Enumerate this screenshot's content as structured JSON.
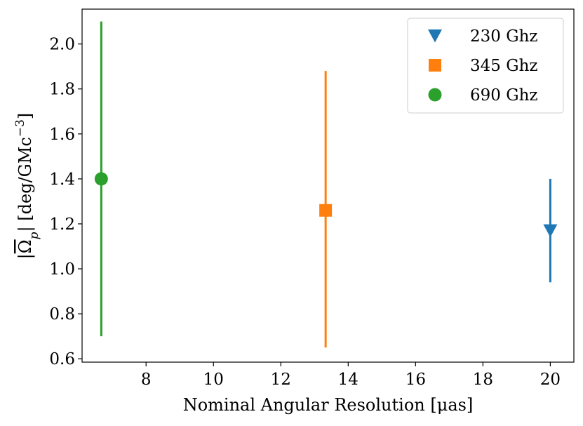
{
  "chart_data": {
    "type": "scatter",
    "xlabel": "Nominal Angular Resolution [μas]",
    "ylabel": "|Ωp| [deg/GMc⁻³]",
    "ylabel_parts": {
      "open": "|",
      "symbol": "Ω",
      "sub": "p",
      "close": "|",
      "unit": " [deg/GMc",
      "sup": "−3",
      "unit_close": "]"
    },
    "xlim": [
      6.1,
      20.7
    ],
    "ylim": [
      0.585,
      2.155
    ],
    "xticks": [
      8,
      10,
      12,
      14,
      16,
      18,
      20
    ],
    "xtick_labels": [
      "8",
      "10",
      "12",
      "14",
      "16",
      "18",
      "20"
    ],
    "yticks": [
      0.6,
      0.8,
      1.0,
      1.2,
      1.4,
      1.6,
      1.8,
      2.0
    ],
    "ytick_labels": [
      "0.6",
      "0.8",
      "1.0",
      "1.2",
      "1.4",
      "1.6",
      "1.8",
      "2.0"
    ],
    "grid": false,
    "legend_position": "top-right",
    "series": [
      {
        "name": "230 Ghz",
        "color": "#1f77b4",
        "marker": "triangle-down",
        "x": 20.0,
        "y": 1.17,
        "yerr_low": 0.94,
        "yerr_high": 1.4
      },
      {
        "name": "345 Ghz",
        "color": "#ff7f0e",
        "marker": "square",
        "x": 13.33,
        "y": 1.26,
        "yerr_low": 0.65,
        "yerr_high": 1.88
      },
      {
        "name": "690 Ghz",
        "color": "#2ca02c",
        "marker": "circle",
        "x": 6.67,
        "y": 1.4,
        "yerr_low": 0.7,
        "yerr_high": 2.1
      }
    ]
  }
}
